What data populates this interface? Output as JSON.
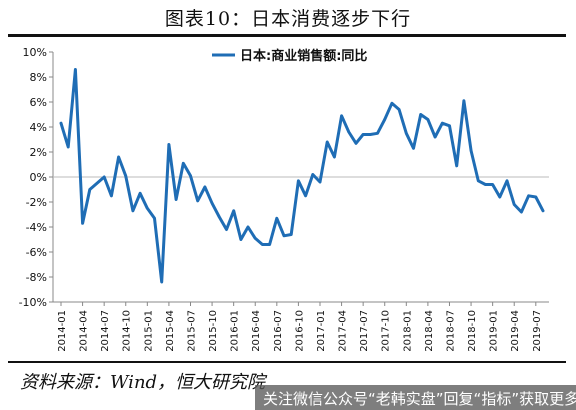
{
  "title": "图表10：日本消费逐步下行",
  "source": "资料来源：Wind，恒大研究院",
  "footer": "关注微信公众号“老韩实盘”回复“指标”获取更多",
  "chart_data": {
    "type": "line",
    "title": "",
    "xlabel": "",
    "ylabel": "",
    "ylim": [
      -10,
      10
    ],
    "yticks": [
      -10,
      -8,
      -6,
      -4,
      -2,
      0,
      2,
      4,
      6,
      8,
      10
    ],
    "ytick_labels": [
      "-10%",
      "-8%",
      "-6%",
      "-4%",
      "-2%",
      "0%",
      "2%",
      "4%",
      "6%",
      "8%",
      "10%"
    ],
    "xtick_labels": [
      "2014-01",
      "2014-04",
      "2014-07",
      "2014-10",
      "2015-01",
      "2015-04",
      "2015-07",
      "2015-10",
      "2016-01",
      "2016-04",
      "2016-07",
      "2016-10",
      "2017-01",
      "2017-04",
      "2017-07",
      "2017-10",
      "2018-01",
      "2018-04",
      "2018-07",
      "2018-10",
      "2019-01",
      "2019-04",
      "2019-07"
    ],
    "grid": false,
    "legend_position": "top-center",
    "color": "#1f6db5",
    "series": [
      {
        "name": "日本:商业销售额:同比",
        "x": [
          "2014-01",
          "2014-02",
          "2014-03",
          "2014-04",
          "2014-05",
          "2014-06",
          "2014-07",
          "2014-08",
          "2014-09",
          "2014-10",
          "2014-11",
          "2014-12",
          "2015-01",
          "2015-02",
          "2015-03",
          "2015-04",
          "2015-05",
          "2015-06",
          "2015-07",
          "2015-08",
          "2015-09",
          "2015-10",
          "2015-11",
          "2015-12",
          "2016-01",
          "2016-02",
          "2016-03",
          "2016-04",
          "2016-05",
          "2016-06",
          "2016-07",
          "2016-08",
          "2016-09",
          "2016-10",
          "2016-11",
          "2016-12",
          "2017-01",
          "2017-02",
          "2017-03",
          "2017-04",
          "2017-05",
          "2017-06",
          "2017-07",
          "2017-08",
          "2017-09",
          "2017-10",
          "2017-11",
          "2017-12",
          "2018-01",
          "2018-02",
          "2018-03",
          "2018-04",
          "2018-05",
          "2018-06",
          "2018-07",
          "2018-08",
          "2018-09",
          "2018-10",
          "2018-11",
          "2018-12",
          "2019-01",
          "2019-02",
          "2019-03",
          "2019-04",
          "2019-05",
          "2019-06",
          "2019-07",
          "2019-08"
        ],
        "values": [
          4.3,
          2.4,
          8.6,
          -3.7,
          -1.0,
          -0.5,
          0.0,
          -1.5,
          1.6,
          0.1,
          -2.7,
          -1.3,
          -2.5,
          -3.3,
          -8.4,
          2.6,
          -1.8,
          1.1,
          0.1,
          -1.9,
          -0.8,
          -2.1,
          -3.2,
          -4.2,
          -2.7,
          -5.0,
          -4.0,
          -4.9,
          -5.4,
          -5.4,
          -3.3,
          -4.7,
          -4.6,
          -0.3,
          -1.5,
          0.2,
          -0.4,
          2.8,
          1.6,
          4.9,
          3.6,
          2.7,
          3.4,
          3.4,
          3.5,
          4.6,
          5.9,
          5.4,
          3.5,
          2.3,
          5.0,
          4.6,
          3.2,
          4.3,
          4.1,
          0.9,
          6.1,
          2.1,
          -0.3,
          -0.6,
          -0.6,
          -1.6,
          -0.3,
          -2.2,
          -2.8,
          -1.5,
          -1.6,
          -2.7
        ]
      }
    ]
  }
}
